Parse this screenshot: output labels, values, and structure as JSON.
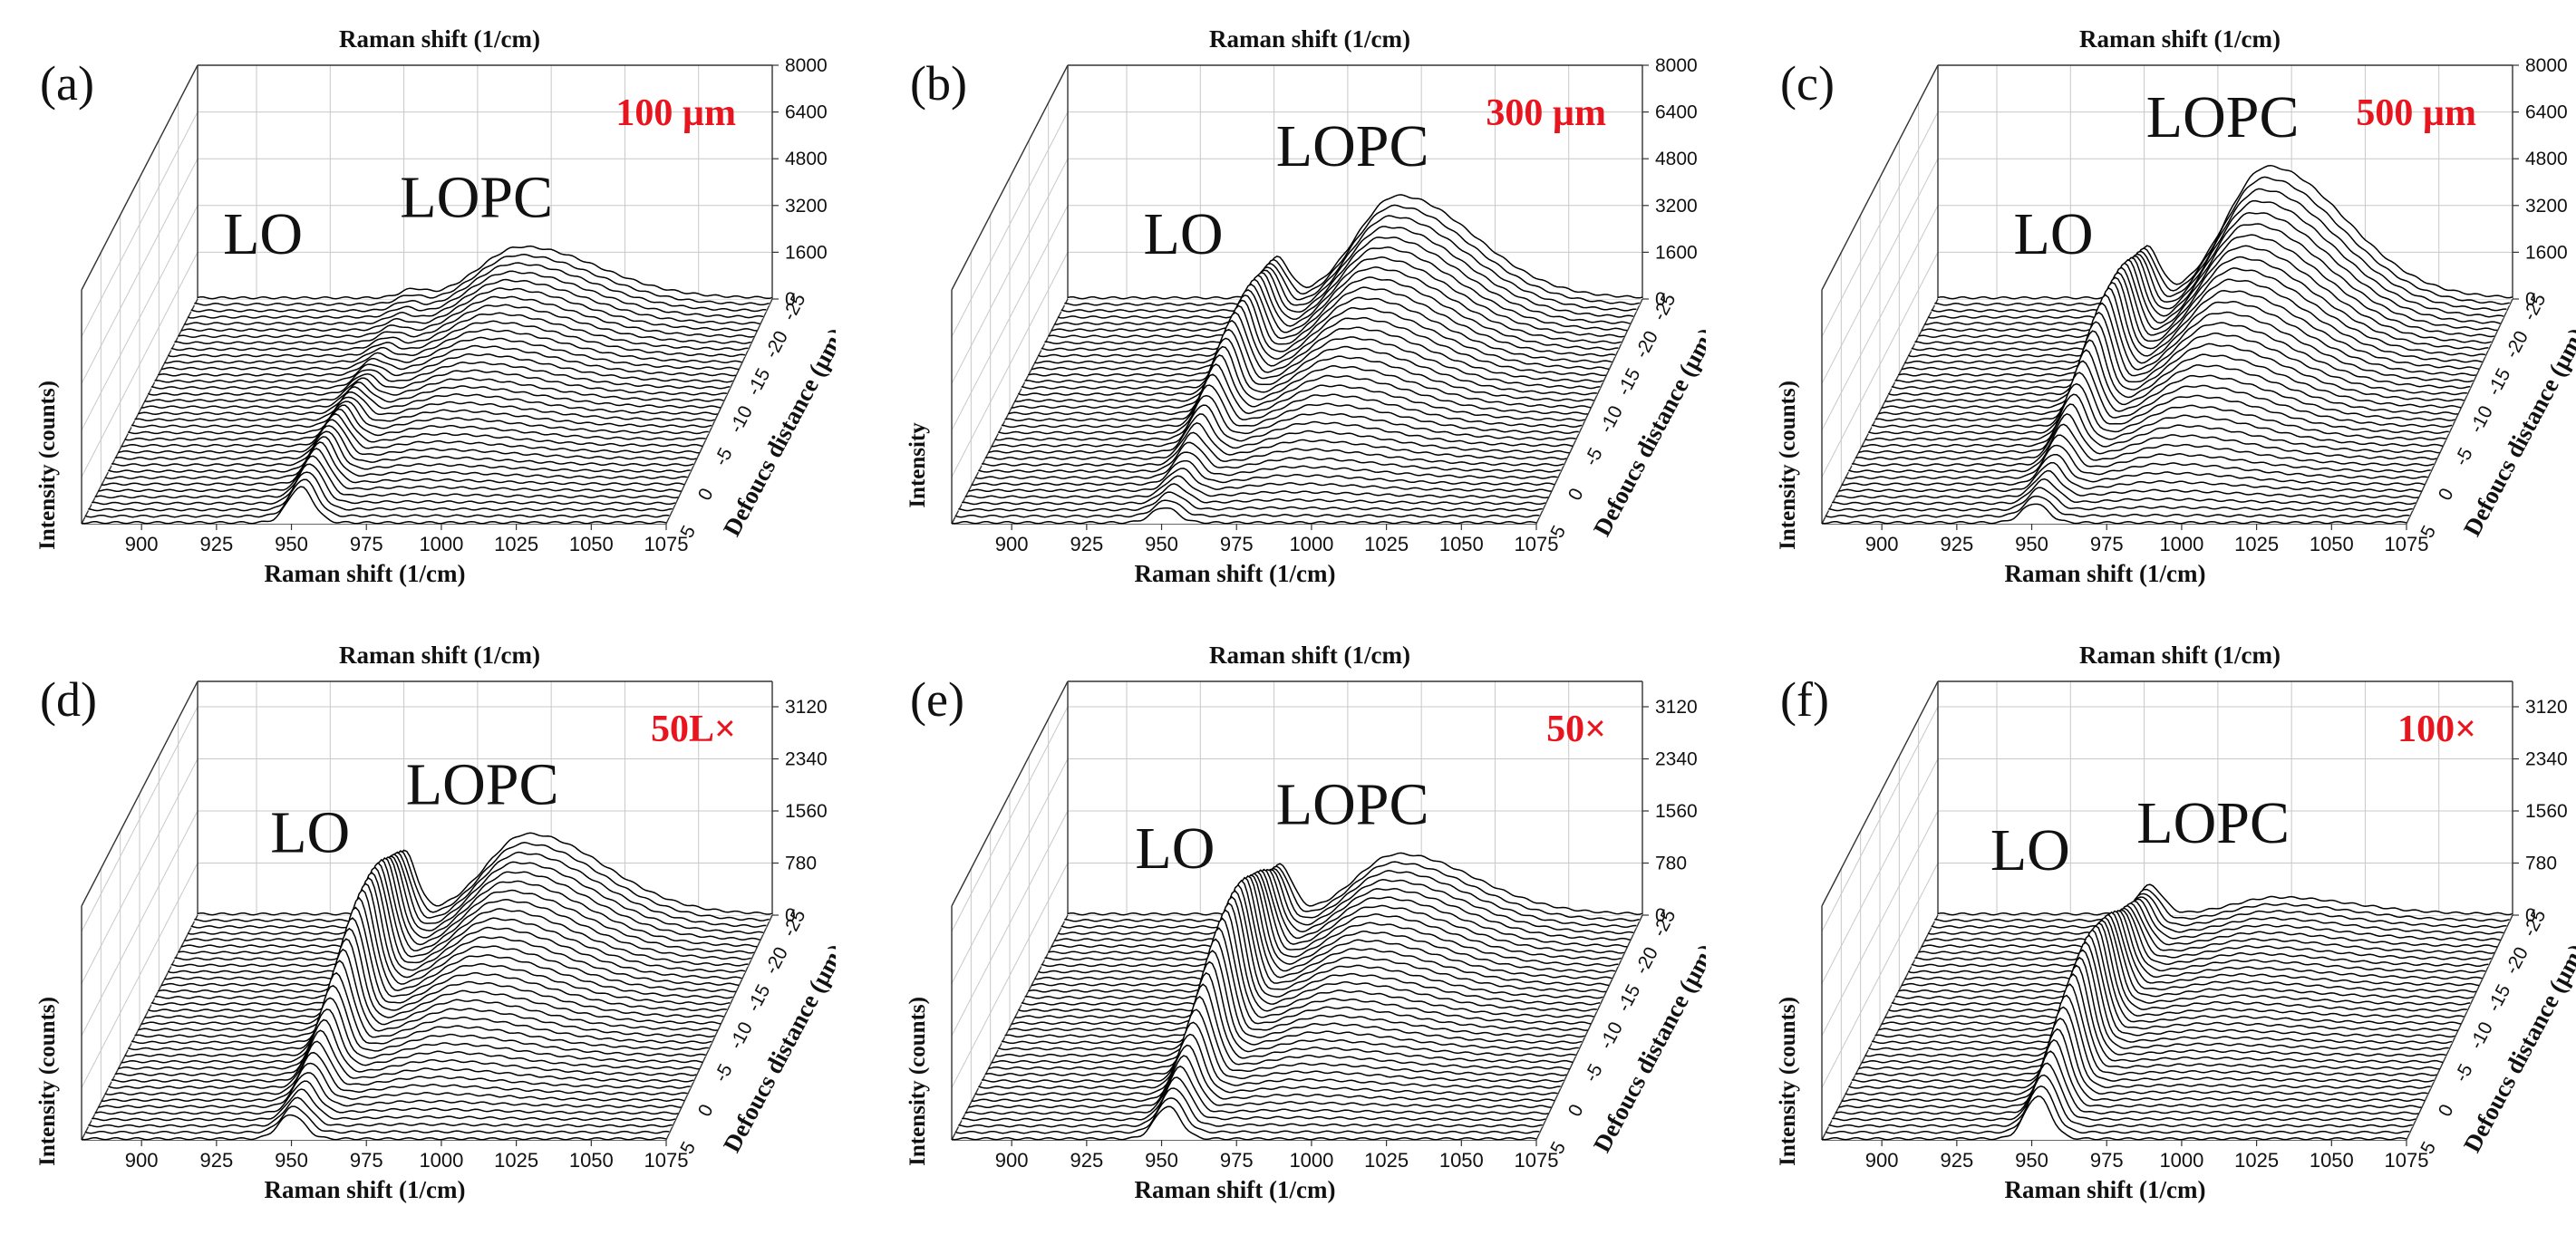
{
  "chart_data": [
    {
      "type": "3d-waterfall",
      "panel_label": "(a)",
      "condition": "100 µm",
      "xlabel": "Raman shift (1/cm)",
      "xlabel_top": "Raman shift (1/cm)",
      "ylabel_back": "Intensity (counts)",
      "ylabel_front": "Intensity (counts)",
      "depth_label": "Defoucs distance (µm)",
      "x_ticks": [
        "900",
        "925",
        "950",
        "975",
        "1000",
        "1025",
        "1050",
        "1075"
      ],
      "xlim": [
        880,
        1075
      ],
      "z_ticks": [
        "0",
        "1600",
        "3200",
        "4800",
        "6400",
        "8000"
      ],
      "zlim": [
        0,
        8000
      ],
      "depth_ticks": [
        "-25",
        "-20",
        "-15",
        "-10",
        "-5",
        "0",
        "5"
      ],
      "depth_range": [
        -25,
        5
      ],
      "annotations": [
        "LO",
        "LOPC"
      ],
      "lo_peak_cm": 953,
      "lopc_peak_cm": 990,
      "lo_peak_max": 1400,
      "lopc_peak_max": 1750,
      "lo_peak_depth": 0,
      "lopc_peak_depth": -25
    },
    {
      "type": "3d-waterfall",
      "panel_label": "(b)",
      "condition": "300 µm",
      "xlabel": "Raman shift (1/cm)",
      "xlabel_top": "Raman shift (1/cm)",
      "ylabel_back": "Intensity (counts)",
      "ylabel_front": "Intensity",
      "depth_label": "Defoucs distance (µm)",
      "x_ticks": [
        "900",
        "925",
        "950",
        "975",
        "1000",
        "1025",
        "1050",
        "1075"
      ],
      "xlim": [
        880,
        1075
      ],
      "z_ticks": [
        "0",
        "1600",
        "3200",
        "4800",
        "6400",
        "8000"
      ],
      "zlim": [
        0,
        8000
      ],
      "depth_ticks": [
        "-25",
        "-20",
        "-15",
        "-10",
        "-5",
        "0",
        "5"
      ],
      "depth_range": [
        -25,
        5
      ],
      "annotations": [
        "LO",
        "LOPC"
      ],
      "lo_peak_cm": 951,
      "lopc_peak_cm": 992,
      "lo_peak_max": 2300,
      "lopc_peak_max": 3500,
      "lo_peak_depth": -15,
      "lopc_peak_depth": -25
    },
    {
      "type": "3d-waterfall",
      "panel_label": "(c)",
      "condition": "500 µm",
      "xlabel": "Raman shift (1/cm)",
      "xlabel_top": "Raman shift (1/cm)",
      "ylabel_back": "Intensity (counts)",
      "ylabel_front": "Intensity (counts)",
      "depth_label": "Defoucs distance (µm)",
      "x_ticks": [
        "900",
        "925",
        "950",
        "975",
        "1000",
        "1025",
        "1050",
        "1075"
      ],
      "xlim": [
        880,
        1075
      ],
      "z_ticks": [
        "0",
        "1600",
        "3200",
        "4800",
        "6400",
        "8000"
      ],
      "zlim": [
        0,
        8000
      ],
      "depth_ticks": [
        "-25",
        "-20",
        "-15",
        "-10",
        "-5",
        "0",
        "5"
      ],
      "depth_range": [
        -25,
        5
      ],
      "annotations": [
        "LO",
        "LOPC"
      ],
      "lo_peak_cm": 951,
      "lopc_peak_cm": 992,
      "lo_peak_max": 2900,
      "lopc_peak_max": 4500,
      "lo_peak_depth": -15,
      "lopc_peak_depth": -25
    },
    {
      "type": "3d-waterfall",
      "panel_label": "(d)",
      "condition": "50L×",
      "xlabel": "Raman shift (1/cm)",
      "xlabel_top": "Raman shift (1/cm)",
      "ylabel_back": "Intensity (counts)",
      "ylabel_front": "Intensity (counts)",
      "depth_label": "Defoucs distance (µm)",
      "x_ticks": [
        "900",
        "925",
        "950",
        "975",
        "1000",
        "1025",
        "1050",
        "1075"
      ],
      "xlim": [
        880,
        1075
      ],
      "z_ticks": [
        "0",
        "780",
        "1560",
        "2340",
        "3120"
      ],
      "zlim": [
        0,
        3500
      ],
      "depth_ticks": [
        "-25",
        "-20",
        "-15",
        "-10",
        "-5",
        "0",
        "5"
      ],
      "depth_range": [
        -25,
        5
      ],
      "annotations": [
        "LO",
        "LOPC"
      ],
      "lo_peak_cm": 950,
      "lopc_peak_cm": 992,
      "lo_peak_max": 1600,
      "lopc_peak_max": 1200,
      "lo_peak_depth": -15,
      "lopc_peak_depth": -25
    },
    {
      "type": "3d-waterfall",
      "panel_label": "(e)",
      "condition": "50×",
      "xlabel": "Raman shift (1/cm)",
      "xlabel_top": "Raman shift (1/cm)",
      "ylabel_back": "Intensity (counts)",
      "ylabel_front": "Intensity (counts)",
      "depth_label": "Defoucs distance (µm)",
      "x_ticks": [
        "900",
        "925",
        "950",
        "975",
        "1000",
        "1025",
        "1050",
        "1075"
      ],
      "xlim": [
        880,
        1075
      ],
      "z_ticks": [
        "0",
        "780",
        "1560",
        "2340",
        "3120"
      ],
      "zlim": [
        0,
        3500
      ],
      "depth_ticks": [
        "-25",
        "-20",
        "-15",
        "-10",
        "-5",
        "0",
        "5"
      ],
      "depth_range": [
        -25,
        5
      ],
      "annotations": [
        "LO",
        "LOPC"
      ],
      "lo_peak_cm": 952,
      "lopc_peak_cm": 992,
      "lo_peak_max": 1700,
      "lopc_peak_max": 900,
      "lo_peak_depth": -12,
      "lopc_peak_depth": -25
    },
    {
      "type": "3d-waterfall",
      "panel_label": "(f)",
      "condition": "100×",
      "xlabel": "Raman shift (1/cm)",
      "xlabel_top": "Raman shift (1/cm)",
      "ylabel_back": "Intensity (counts)",
      "ylabel_front": "Intensity (counts)",
      "depth_label": "Defoucs distance (µm)",
      "x_ticks": [
        "900",
        "925",
        "950",
        "975",
        "1000",
        "1025",
        "1050",
        "1075"
      ],
      "xlim": [
        880,
        1075
      ],
      "z_ticks": [
        "0",
        "780",
        "1560",
        "2340",
        "3120"
      ],
      "zlim": [
        0,
        3500
      ],
      "depth_ticks": [
        "-25",
        "-20",
        "-15",
        "-10",
        "-5",
        "0",
        "5"
      ],
      "depth_range": [
        -25,
        5
      ],
      "annotations": [
        "LO",
        "LOPC"
      ],
      "lo_peak_cm": 952,
      "lopc_peak_cm": 995,
      "lo_peak_max": 1500,
      "lopc_peak_max": 250,
      "lo_peak_depth": -8,
      "lopc_peak_depth": -20
    }
  ],
  "colors": {
    "curve": "#000000",
    "grid": "#c8c8c8",
    "axis": "#333333",
    "condition_label": "#e8141e",
    "text": "#111111"
  }
}
